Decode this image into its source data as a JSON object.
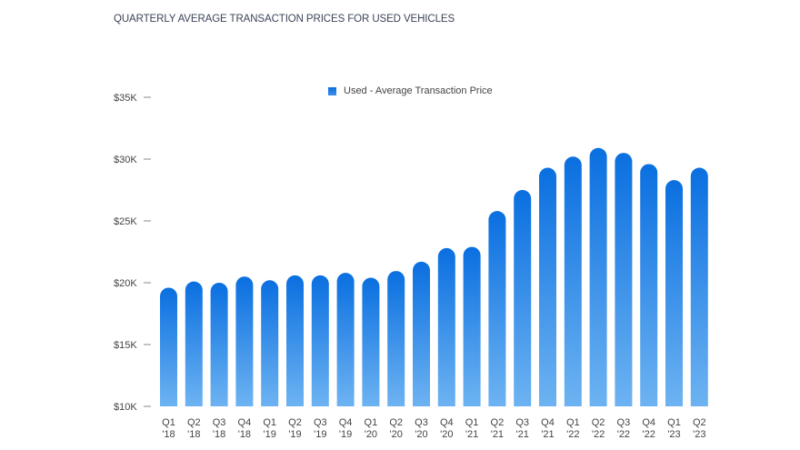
{
  "chart_data": {
    "type": "bar",
    "title": "QUARTERLY AVERAGE TRANSACTION PRICES FOR USED VEHICLES",
    "legend": [
      {
        "name": "Used - Average Transaction Price",
        "color": "#0a72e3"
      }
    ],
    "legend_position": "top-center",
    "xlabel": "",
    "ylabel": "",
    "ylim": [
      10000,
      35000
    ],
    "yticks": [
      {
        "value": 10000,
        "label": "$10K"
      },
      {
        "value": 15000,
        "label": "$15K"
      },
      {
        "value": 20000,
        "label": "$20K"
      },
      {
        "value": 25000,
        "label": "$25K"
      },
      {
        "value": 30000,
        "label": "$30K"
      },
      {
        "value": 35000,
        "label": "$35K"
      }
    ],
    "categories": [
      {
        "q": "Q1",
        "y": "'18"
      },
      {
        "q": "Q2",
        "y": "'18"
      },
      {
        "q": "Q3",
        "y": "'18"
      },
      {
        "q": "Q4",
        "y": "'18"
      },
      {
        "q": "Q1",
        "y": "'19"
      },
      {
        "q": "Q2",
        "y": "'19"
      },
      {
        "q": "Q3",
        "y": "'19"
      },
      {
        "q": "Q4",
        "y": "'19"
      },
      {
        "q": "Q1",
        "y": "'20"
      },
      {
        "q": "Q2",
        "y": "'20"
      },
      {
        "q": "Q3",
        "y": "'20"
      },
      {
        "q": "Q4",
        "y": "'20"
      },
      {
        "q": "Q1",
        "y": "'21"
      },
      {
        "q": "Q2",
        "y": "'21"
      },
      {
        "q": "Q3",
        "y": "'21"
      },
      {
        "q": "Q4",
        "y": "'21"
      },
      {
        "q": "Q1",
        "y": "'22"
      },
      {
        "q": "Q2",
        "y": "'22"
      },
      {
        "q": "Q3",
        "y": "'22"
      },
      {
        "q": "Q4",
        "y": "'22"
      },
      {
        "q": "Q1",
        "y": "'23"
      },
      {
        "q": "Q2",
        "y": "'23"
      }
    ],
    "series": [
      {
        "name": "Used - Average Transaction Price",
        "values": [
          19600,
          20100,
          20000,
          20500,
          20200,
          20600,
          20600,
          20800,
          20400,
          20950,
          21700,
          22800,
          22900,
          25800,
          27500,
          29300,
          30200,
          30900,
          30500,
          29600,
          28300,
          29300
        ]
      }
    ],
    "grid": false,
    "colors": {
      "bar_top": "#0a6fe0",
      "bar_bottom": "#6db3f2"
    }
  }
}
